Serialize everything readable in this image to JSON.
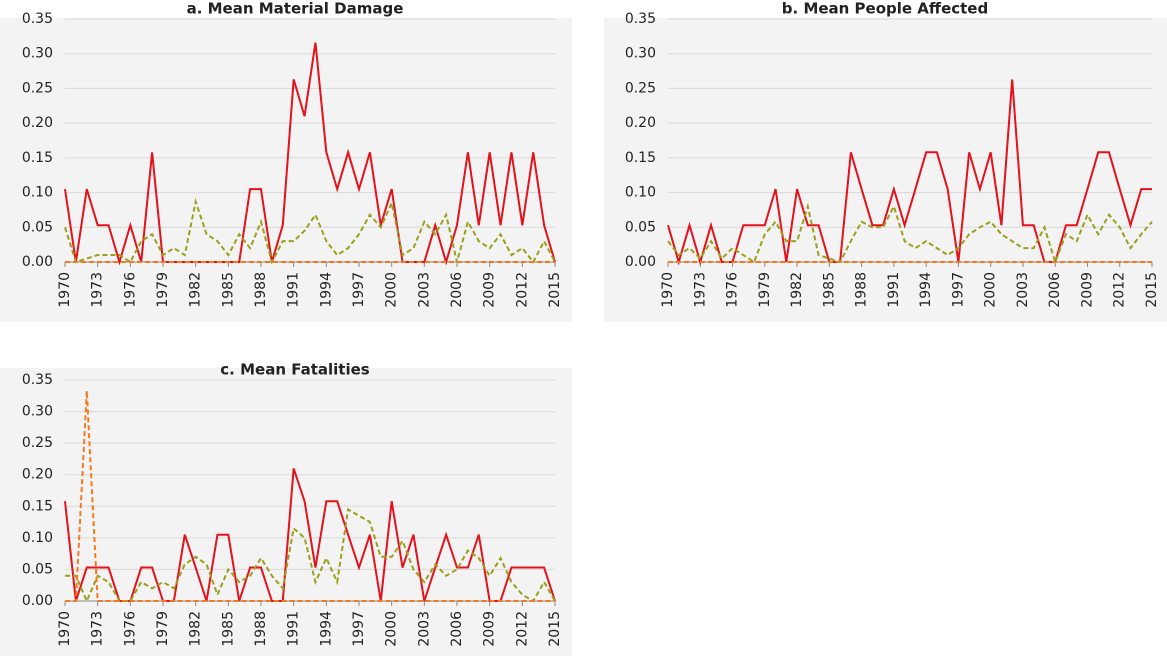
{
  "chart_data": [
    {
      "type": "line",
      "title": "a. Mean Material Damage",
      "x": [
        1970,
        1971,
        1972,
        1973,
        1974,
        1975,
        1976,
        1977,
        1978,
        1979,
        1980,
        1981,
        1982,
        1983,
        1984,
        1985,
        1986,
        1987,
        1988,
        1989,
        1990,
        1991,
        1992,
        1993,
        1994,
        1995,
        1996,
        1997,
        1998,
        1999,
        2000,
        2001,
        2002,
        2003,
        2004,
        2005,
        2006,
        2007,
        2008,
        2009,
        2010,
        2011,
        2012,
        2013,
        2014,
        2015
      ],
      "xlim": [
        1970,
        2015
      ],
      "xticks": [
        1970,
        1973,
        1976,
        1979,
        1982,
        1985,
        1988,
        1991,
        1994,
        1997,
        2000,
        2003,
        2006,
        2009,
        2012,
        2015
      ],
      "ylim": [
        0,
        0.35
      ],
      "yticks": [
        {
          "value": 0,
          "label": "0.00"
        },
        {
          "value": 0.05,
          "label": "0.05"
        },
        {
          "value": 0.1,
          "label": "0.10"
        },
        {
          "value": 0.15,
          "label": "0.15"
        },
        {
          "value": 0.2,
          "label": "0.20"
        },
        {
          "value": 0.25,
          "label": "0.25"
        },
        {
          "value": 0.3,
          "label": "0.30"
        },
        {
          "value": 0.35,
          "label": "0.35"
        }
      ],
      "grid": true,
      "series": [
        {
          "color": "#e3121b",
          "dashed": false,
          "values": [
            0.105,
            0,
            0.105,
            0.053,
            0.053,
            0,
            0.053,
            0,
            0.158,
            0,
            0,
            0,
            0,
            0,
            0,
            0,
            0,
            0.105,
            0.105,
            0,
            0.053,
            0.263,
            0.21,
            0.316,
            0.158,
            0.105,
            0.158,
            0.105,
            0.158,
            0.053,
            0.105,
            0,
            0,
            0,
            0.053,
            0,
            0.053,
            0.158,
            0.053,
            0.158,
            0.053,
            0.158,
            0.053,
            0.158,
            0.053,
            0
          ]
        },
        {
          "color": "#9aa01a",
          "dashed": true,
          "values": [
            0.05,
            0,
            0.005,
            0.01,
            0.01,
            0.01,
            0,
            0.03,
            0.04,
            0.01,
            0.02,
            0.01,
            0.087,
            0.04,
            0.03,
            0.01,
            0.04,
            0.02,
            0.058,
            0,
            0.03,
            0.03,
            0.045,
            0.068,
            0.03,
            0.01,
            0.02,
            0.04,
            0.068,
            0.05,
            0.085,
            0.01,
            0.02,
            0.058,
            0.04,
            0.068,
            0,
            0.058,
            0.03,
            0.02,
            0.04,
            0.01,
            0.02,
            0,
            0.03,
            0
          ]
        },
        {
          "color": "#f47a20",
          "dashed": true,
          "values": [
            0,
            0,
            0,
            0,
            0,
            0,
            0,
            0,
            0,
            0,
            0,
            0,
            0,
            0,
            0,
            0,
            0,
            0,
            0,
            0,
            0,
            0,
            0,
            0,
            0,
            0,
            0,
            0,
            0,
            0,
            0,
            0,
            0,
            0,
            0,
            0,
            0,
            0,
            0,
            0,
            0,
            0,
            0,
            0,
            0,
            0
          ]
        }
      ]
    },
    {
      "type": "line",
      "title": "b. Mean People Affected",
      "x": [
        1970,
        1971,
        1972,
        1973,
        1974,
        1975,
        1976,
        1977,
        1978,
        1979,
        1980,
        1981,
        1982,
        1983,
        1984,
        1985,
        1986,
        1987,
        1988,
        1989,
        1990,
        1991,
        1992,
        1993,
        1994,
        1995,
        1996,
        1997,
        1998,
        1999,
        2000,
        2001,
        2002,
        2003,
        2004,
        2005,
        2006,
        2007,
        2008,
        2009,
        2010,
        2011,
        2012,
        2013,
        2014,
        2015
      ],
      "xlim": [
        1970,
        2015
      ],
      "xticks": [
        1970,
        1973,
        1976,
        1979,
        1982,
        1985,
        1988,
        1991,
        1994,
        1997,
        2000,
        2003,
        2006,
        2009,
        2012,
        2015
      ],
      "ylim": [
        0,
        0.35
      ],
      "yticks": [
        {
          "value": 0,
          "label": "0.00"
        },
        {
          "value": 0.05,
          "label": "0.05"
        },
        {
          "value": 0.1,
          "label": "0.10"
        },
        {
          "value": 0.15,
          "label": "0.15"
        },
        {
          "value": 0.2,
          "label": "0.20"
        },
        {
          "value": 0.25,
          "label": "0.25"
        },
        {
          "value": 0.3,
          "label": "0.30"
        },
        {
          "value": 0.35,
          "label": "0.35"
        }
      ],
      "grid": true,
      "series": [
        {
          "color": "#e3121b",
          "dashed": false,
          "values": [
            0.053,
            0,
            0.053,
            0,
            0.053,
            0,
            0,
            0.053,
            0.053,
            0.053,
            0.105,
            0,
            0.105,
            0.053,
            0.053,
            0,
            0,
            0.158,
            0.105,
            0.053,
            0.053,
            0.105,
            0.053,
            0.105,
            0.158,
            0.158,
            0.105,
            0,
            0.158,
            0.105,
            0.158,
            0.053,
            0.263,
            0.053,
            0.053,
            0,
            0,
            0.053,
            0.053,
            0.105,
            0.158,
            0.158,
            0.105,
            0.053,
            0.105,
            0.105
          ]
        },
        {
          "color": "#9aa01a",
          "dashed": true,
          "values": [
            0.03,
            0.01,
            0.02,
            0.005,
            0.03,
            0.005,
            0.02,
            0.01,
            0,
            0.04,
            0.058,
            0.03,
            0.03,
            0.08,
            0.01,
            0.005,
            0,
            0.03,
            0.058,
            0.05,
            0.05,
            0.08,
            0.03,
            0.02,
            0.03,
            0.02,
            0.01,
            0.02,
            0.04,
            0.05,
            0.058,
            0.04,
            0.03,
            0.02,
            0.02,
            0.05,
            0,
            0.04,
            0.03,
            0.068,
            0.04,
            0.068,
            0.05,
            0.02,
            0.04,
            0.058
          ]
        },
        {
          "color": "#f47a20",
          "dashed": true,
          "values": [
            0,
            0,
            0,
            0,
            0,
            0,
            0,
            0,
            0,
            0,
            0,
            0,
            0,
            0,
            0,
            0,
            0,
            0,
            0,
            0,
            0,
            0,
            0,
            0,
            0,
            0,
            0,
            0,
            0,
            0,
            0,
            0,
            0,
            0,
            0,
            0,
            0,
            0,
            0,
            0,
            0,
            0,
            0,
            0,
            0,
            0
          ]
        }
      ]
    },
    {
      "type": "line",
      "title": "c. Mean Fatalities",
      "x": [
        1970,
        1971,
        1972,
        1973,
        1974,
        1975,
        1976,
        1977,
        1978,
        1979,
        1980,
        1981,
        1982,
        1983,
        1984,
        1985,
        1986,
        1987,
        1988,
        1989,
        1990,
        1991,
        1992,
        1993,
        1994,
        1995,
        1996,
        1997,
        1998,
        1999,
        2000,
        2001,
        2002,
        2003,
        2004,
        2005,
        2006,
        2007,
        2008,
        2009,
        2010,
        2011,
        2012,
        2013,
        2014,
        2015
      ],
      "xlim": [
        1970,
        2015
      ],
      "xticks": [
        1970,
        1973,
        1976,
        1979,
        1982,
        1985,
        1988,
        1991,
        1994,
        1997,
        2000,
        2003,
        2006,
        2009,
        2012,
        2015
      ],
      "ylim": [
        0,
        0.35
      ],
      "yticks": [
        {
          "value": 0,
          "label": "0.00"
        },
        {
          "value": 0.05,
          "label": "0.05"
        },
        {
          "value": 0.1,
          "label": "0.10"
        },
        {
          "value": 0.15,
          "label": "0.15"
        },
        {
          "value": 0.2,
          "label": "0.20"
        },
        {
          "value": 0.25,
          "label": "0.25"
        },
        {
          "value": 0.3,
          "label": "0.30"
        },
        {
          "value": 0.35,
          "label": "0.35"
        }
      ],
      "grid": true,
      "series": [
        {
          "color": "#e3121b",
          "dashed": false,
          "values": [
            0.158,
            0,
            0.053,
            0.053,
            0.053,
            0,
            0,
            0.053,
            0.053,
            0,
            0,
            0.105,
            0.053,
            0,
            0.105,
            0.105,
            0,
            0.053,
            0.053,
            0,
            0,
            0.21,
            0.158,
            0.053,
            0.158,
            0.158,
            0.105,
            0.053,
            0.105,
            0,
            0.158,
            0.053,
            0.105,
            0,
            0.053,
            0.105,
            0.053,
            0.053,
            0.105,
            0,
            0,
            0.053,
            0.053,
            0.053,
            0.053,
            0
          ]
        },
        {
          "color": "#9aa01a",
          "dashed": true,
          "values": [
            0.04,
            0.04,
            0,
            0.04,
            0.03,
            0,
            0,
            0.03,
            0.02,
            0.03,
            0.02,
            0.058,
            0.07,
            0.058,
            0.01,
            0.05,
            0.03,
            0.04,
            0.068,
            0.04,
            0.02,
            0.115,
            0.1,
            0.03,
            0.068,
            0.03,
            0.145,
            0.135,
            0.125,
            0.07,
            0.07,
            0.095,
            0.05,
            0.03,
            0.058,
            0.04,
            0.05,
            0.08,
            0.068,
            0.04,
            0.068,
            0.03,
            0.01,
            0,
            0.03,
            0
          ]
        },
        {
          "color": "#f47a20",
          "dashed": true,
          "values": [
            0,
            0,
            0.333,
            0,
            0,
            0,
            0,
            0,
            0,
            0,
            0,
            0,
            0,
            0,
            0,
            0,
            0,
            0,
            0,
            0,
            0,
            0,
            0,
            0,
            0,
            0,
            0,
            0,
            0,
            0,
            0,
            0,
            0,
            0,
            0,
            0,
            0,
            0,
            0,
            0,
            0,
            0,
            0,
            0,
            0,
            0
          ]
        }
      ]
    }
  ]
}
